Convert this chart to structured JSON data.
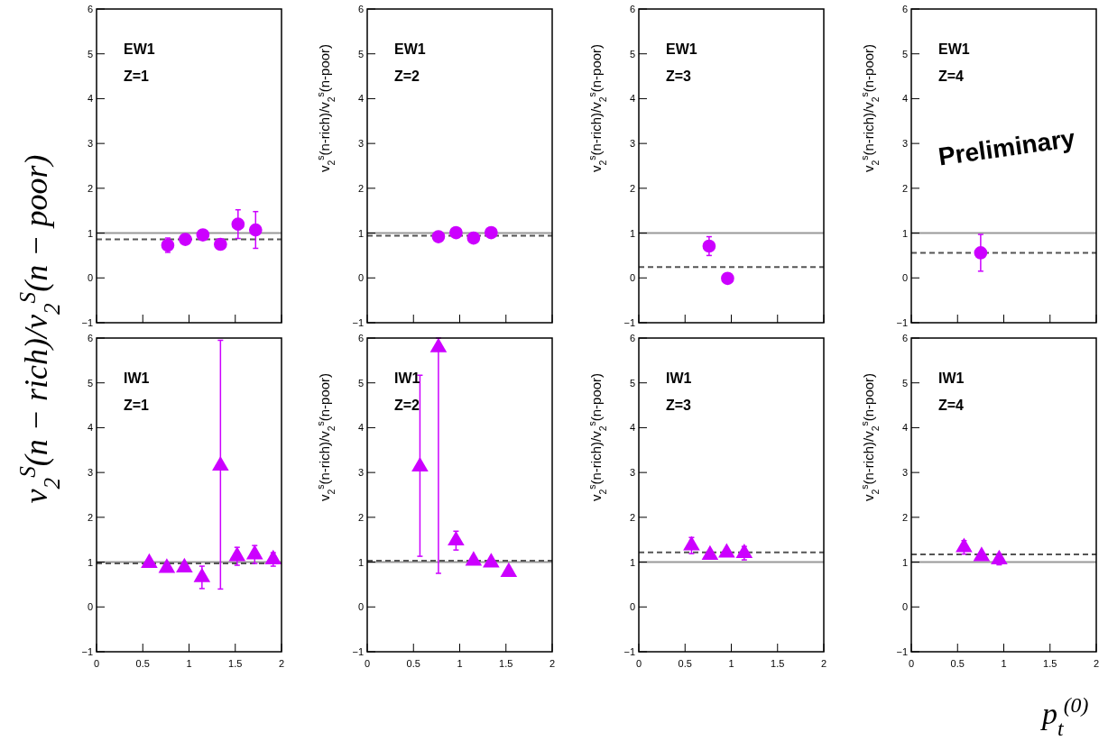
{
  "chart_data": [
    {
      "type": "scatter",
      "ylabel": "v$_{2}$$^{S}$(n − rich)/v$_{2}$$^{S}$(n − poor)",
      "annotations": [
        "EW1",
        "Z=1"
      ],
      "marker": "circle",
      "color": "#cc00ff",
      "x": [
        0.77,
        0.96,
        1.15,
        1.34,
        1.53,
        1.72
      ],
      "values": [
        0.73,
        0.86,
        0.96,
        0.75,
        1.2,
        1.07
      ],
      "errors": [
        0.16,
        0.1,
        0.08,
        0.1,
        0.32,
        0.41
      ],
      "ref_lines": [
        {
          "axis": "y",
          "value": 1,
          "color": "#999999",
          "line_style": "solid"
        },
        {
          "axis": "y",
          "value": 0.86,
          "color": "#555555",
          "line_style": "dashed"
        }
      ],
      "xlim": [
        0,
        2
      ],
      "xticks": [
        0,
        0.5,
        1,
        1.5,
        2
      ],
      "ylim": [
        -1,
        6
      ],
      "yticks": [
        -1,
        0,
        1,
        2,
        3,
        4,
        5,
        6
      ],
      "tick_labels": "y"
    },
    {
      "type": "scatter",
      "ylabel": "v$_{2}$$^{s}$(n-rich)/v$_{2}$$^{s}$(n-poor)",
      "annotations": [
        "EW1",
        "Z=2"
      ],
      "marker": "circle",
      "color": "#cc00ff",
      "x": [
        0.77,
        0.96,
        1.15,
        1.34
      ],
      "values": [
        0.92,
        1.01,
        0.89,
        1.01
      ],
      "errors": [
        0.06,
        0.06,
        0.06,
        0.1
      ],
      "ref_lines": [
        {
          "axis": "y",
          "value": 1,
          "color": "#999999",
          "line_style": "solid"
        },
        {
          "axis": "y",
          "value": 0.94,
          "color": "#555555",
          "line_style": "dashed"
        }
      ],
      "xlim": [
        0,
        2
      ],
      "xticks": [
        0,
        0.5,
        1,
        1.5,
        2
      ],
      "ylim": [
        -1,
        6
      ],
      "yticks": [
        -1,
        0,
        1,
        2,
        3,
        4,
        5,
        6
      ],
      "tick_labels": "y"
    },
    {
      "type": "scatter",
      "ylabel": "v$_{2}$$^{s}$(n-rich)/v$_{2}$$^{s}$(n-poor)",
      "annotations": [
        "EW1",
        "Z=3"
      ],
      "marker": "circle",
      "color": "#cc00ff",
      "x": [
        0.76,
        0.96
      ],
      "values": [
        0.71,
        -0.01
      ],
      "errors": [
        0.21,
        0.1
      ],
      "ref_lines": [
        {
          "axis": "y",
          "value": 1,
          "color": "#999999",
          "line_style": "solid"
        },
        {
          "axis": "y",
          "value": 0.24,
          "color": "#555555",
          "line_style": "dashed"
        }
      ],
      "xlim": [
        0,
        2
      ],
      "xticks": [
        0,
        0.5,
        1,
        1.5,
        2
      ],
      "ylim": [
        -1,
        6
      ],
      "yticks": [
        -1,
        0,
        1,
        2,
        3,
        4,
        5,
        6
      ],
      "tick_labels": "y"
    },
    {
      "type": "scatter",
      "ylabel": "v$_{2}$$^{s}$(n-rich)/v$_{2}$$^{s}$(n-poor)",
      "annotations": [
        "EW1",
        "Z=4",
        "Preliminary"
      ],
      "marker": "circle",
      "color": "#cc00ff",
      "x": [
        0.75
      ],
      "values": [
        0.56
      ],
      "errors": [
        [
          0.15,
          0.97
        ]
      ],
      "ref_lines": [
        {
          "axis": "y",
          "value": 1,
          "color": "#999999",
          "line_style": "solid"
        },
        {
          "axis": "y",
          "value": 0.56,
          "color": "#555555",
          "line_style": "dashed"
        }
      ],
      "xlim": [
        0,
        2
      ],
      "xticks": [
        0,
        0.5,
        1,
        1.5,
        2
      ],
      "ylim": [
        -1,
        6
      ],
      "yticks": [
        -1,
        0,
        1,
        2,
        3,
        4,
        5,
        6
      ],
      "tick_labels": "y"
    },
    {
      "type": "scatter",
      "annotations": [
        "IW1",
        "Z=1"
      ],
      "marker": "triangle",
      "color": "#cc00ff",
      "x": [
        0.57,
        0.76,
        0.95,
        1.14,
        1.34,
        1.52,
        1.71,
        1.91
      ],
      "values": [
        0.98,
        0.87,
        0.88,
        0.66,
        3.15,
        1.13,
        1.17,
        1.06
      ],
      "errors": [
        0.05,
        0.05,
        0.05,
        0.25,
        [
          0.4,
          5.95
        ],
        0.2,
        0.2,
        0.15
      ],
      "ref_lines": [
        {
          "axis": "y",
          "value": 1,
          "color": "#999999",
          "line_style": "solid"
        },
        {
          "axis": "y",
          "value": 0.97,
          "color": "#555555",
          "line_style": "dashed"
        }
      ],
      "xlim": [
        0,
        2
      ],
      "xticks": [
        0,
        0.5,
        1,
        1.5,
        2
      ],
      "ylim": [
        -1,
        6
      ],
      "yticks": [
        -1,
        0,
        1,
        2,
        3,
        4,
        5,
        6
      ]
    },
    {
      "type": "scatter",
      "ylabel": "v$_{2}$$^{s}$(n-rich)/v$_{2}$$^{s}$(n-poor)",
      "annotations": [
        "IW1",
        "Z=2"
      ],
      "marker": "triangle",
      "color": "#cc00ff",
      "x": [
        0.57,
        0.77,
        0.96,
        1.15,
        1.34,
        1.53
      ],
      "values": [
        3.13,
        5.79,
        1.48,
        1.03,
        0.99,
        0.78
      ],
      "errors": [
        [
          1.13,
          5.17
        ],
        [
          0.75,
          6
        ],
        [
          1.27,
          1.69
        ],
        0.05,
        0.05,
        0.05
      ],
      "ref_lines": [
        {
          "axis": "y",
          "value": 1,
          "color": "#999999",
          "line_style": "solid"
        },
        {
          "axis": "y",
          "value": 1.03,
          "color": "#555555",
          "line_style": "dashed"
        }
      ],
      "xlim": [
        0,
        2
      ],
      "xticks": [
        0,
        0.5,
        1,
        1.5,
        2
      ],
      "ylim": [
        -1,
        6
      ],
      "yticks": [
        -1,
        0,
        1,
        2,
        3,
        4,
        5,
        6
      ]
    },
    {
      "type": "scatter",
      "ylabel": "v$_{2}$$^{s}$(n-rich)/v$_{2}$$^{s}$(n-poor)",
      "annotations": [
        "IW1",
        "Z=3"
      ],
      "marker": "triangle",
      "color": "#cc00ff",
      "x": [
        0.57,
        0.77,
        0.95,
        1.14
      ],
      "values": [
        1.37,
        1.16,
        1.21,
        1.2
      ],
      "errors": [
        0.18,
        0.05,
        0.06,
        0.15
      ],
      "ref_lines": [
        {
          "axis": "y",
          "value": 1,
          "color": "#999999",
          "line_style": "solid"
        },
        {
          "axis": "y",
          "value": 1.22,
          "color": "#555555",
          "line_style": "dashed"
        }
      ],
      "xlim": [
        0,
        2
      ],
      "xticks": [
        0,
        0.5,
        1,
        1.5,
        2
      ],
      "ylim": [
        -1,
        6
      ],
      "yticks": [
        -1,
        0,
        1,
        2,
        3,
        4,
        5,
        6
      ]
    },
    {
      "type": "scatter",
      "ylabel": "v$_{2}$$^{s}$(n-rich)/v$_{2}$$^{s}$(n-poor)",
      "xlabel": "p$_{t}$$^{(0)}$",
      "annotations": [
        "IW1",
        "Z=4"
      ],
      "marker": "triangle",
      "color": "#cc00ff",
      "x": [
        0.57,
        0.76,
        0.95
      ],
      "values": [
        1.33,
        1.13,
        1.06
      ],
      "errors": [
        0.15,
        0.05,
        0.12
      ],
      "ref_lines": [
        {
          "axis": "y",
          "value": 1,
          "color": "#999999",
          "line_style": "solid"
        },
        {
          "axis": "y",
          "value": 1.17,
          "color": "#555555",
          "line_style": "dashed"
        }
      ],
      "xlim": [
        0,
        2
      ],
      "xticks": [
        0,
        0.5,
        1,
        1.5,
        2
      ],
      "ylim": [
        -1,
        6
      ],
      "yticks": [
        -1,
        0,
        1,
        2,
        3,
        4,
        5,
        6
      ]
    }
  ]
}
